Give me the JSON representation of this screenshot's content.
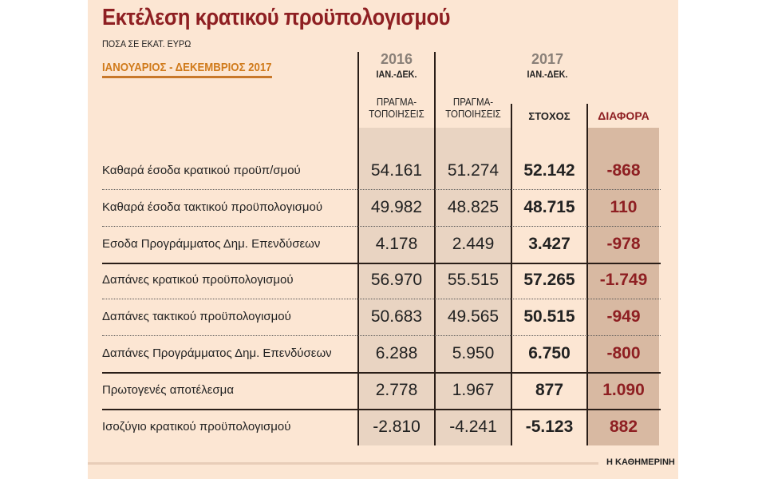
{
  "title": "Εκτέλεση κρατικού προϋπολογισμού",
  "subtitle": "ΠΟΣΑ ΣΕ ΕΚΑΤ. ΕΥΡΩ",
  "period": "ΙΑΝΟΥΑΡΙΟΣ - ΔΕΚΕΜΒΡΙΟΣ 2017",
  "header": {
    "year2016": "2016",
    "year2016_sub": "ΙΑΝ.-ΔΕΚ.",
    "year2017": "2017",
    "year2017_sub": "ΙΑΝ.-ΔΕΚ.",
    "col_actual_2016": "ΠΡΑΓΜΑ-\nΤΟΠΟΙΗΣΕΙΣ",
    "col_actual_2017": "ΠΡΑΓΜΑ-\nΤΟΠΟΙΗΣΕΙΣ",
    "col_target": "ΣΤΟΧΟΣ",
    "col_diff": "ΔΙΑΦΟΡΑ"
  },
  "rows": [
    {
      "label": "Καθαρά έσοδα κρατικού προϋπ/σμού",
      "a2016": "54.161",
      "a2017": "51.274",
      "target": "52.142",
      "diff": "-868"
    },
    {
      "label": "Καθαρά έσοδα τακτικού προϋπολογισμού",
      "a2016": "49.982",
      "a2017": "48.825",
      "target": "48.715",
      "diff": "110"
    },
    {
      "label": "Εσοδα Προγράμματος Δημ. Επενδύσεων",
      "a2016": "4.178",
      "a2017": "2.449",
      "target": "3.427",
      "diff": "-978"
    },
    {
      "label": "Δαπάνες κρατικού προϋπολογισμού",
      "a2016": "56.970",
      "a2017": "55.515",
      "target": "57.265",
      "diff": "-1.749"
    },
    {
      "label": "Δαπάνες τακτικού προϋπολογισμού",
      "a2016": "50.683",
      "a2017": "49.565",
      "target": "50.515",
      "diff": "-949"
    },
    {
      "label": "Δαπάνες Προγράμματος Δημ. Επενδύσεων",
      "a2016": "6.288",
      "a2017": "5.950",
      "target": "6.750",
      "diff": "-800"
    },
    {
      "label": "Πρωτογενές αποτέλεσμα",
      "a2016": "2.778",
      "a2017": "1.967",
      "target": "877",
      "diff": "1.090"
    },
    {
      "label": "Ισοζύγιο κρατικού προϋπολογισμού",
      "a2016": "-2.810",
      "a2017": "-4.241",
      "target": "-5.123",
      "diff": "882"
    }
  ],
  "credit": "Η ΚΑΘΗΜΕΡΙΝΗ",
  "colors": {
    "background": "#fce6d3",
    "title": "#8e1f22",
    "accent": "#d07a1a",
    "shade": "#e9d4c2",
    "diff_shade": "#d8b9a2"
  }
}
